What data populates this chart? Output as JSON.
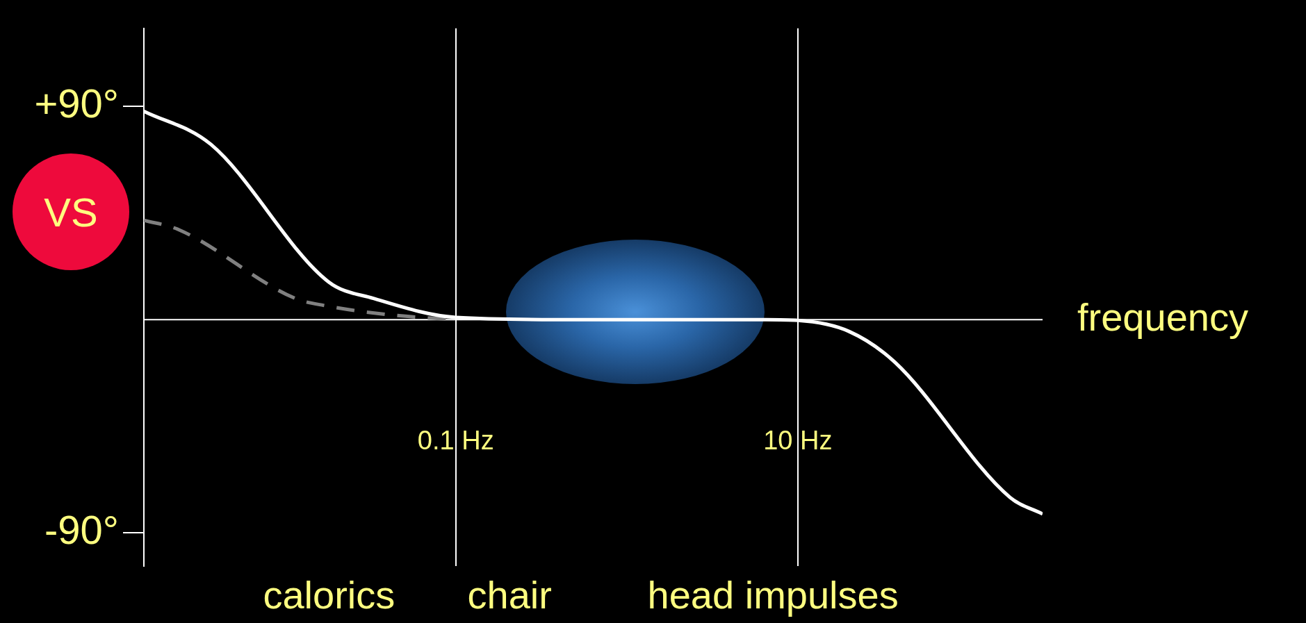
{
  "chart_data": {
    "type": "line",
    "xlabel": "frequency",
    "log": "x",
    "grid": "x",
    "legend": false,
    "marker": "none",
    "xlim": [
      0.0015,
      270
    ],
    "xticks": [
      {
        "value": 0.1,
        "label": "0.1 Hz"
      },
      {
        "value": 10,
        "label": "10 Hz"
      }
    ],
    "ylim": [
      -104,
      123
    ],
    "yticks": [
      {
        "value": 90,
        "label": "+90°"
      },
      {
        "value": -90,
        "label": "-90°"
      }
    ],
    "series": [
      {
        "color": "#ffffff",
        "line_style": "solid",
        "x": [
          0.0015,
          0.0037,
          0.018,
          0.033,
          0.1,
          0.55,
          6.5,
          10,
          20,
          37,
          174,
          270
        ],
        "values": [
          88,
          74,
          16,
          9,
          1,
          0,
          0,
          -0.3,
          -5,
          -18,
          -75,
          -82
        ]
      },
      {
        "name": "VS",
        "color": "#808080",
        "line_style": "dashed",
        "x": [
          0.0015,
          0.0024,
          0.0115,
          0.017,
          0.042,
          0.1
        ],
        "values": [
          42,
          38,
          9,
          6,
          2,
          0
        ]
      }
    ],
    "annotations": [
      "calorics",
      "chair",
      "head impulses"
    ]
  }
}
